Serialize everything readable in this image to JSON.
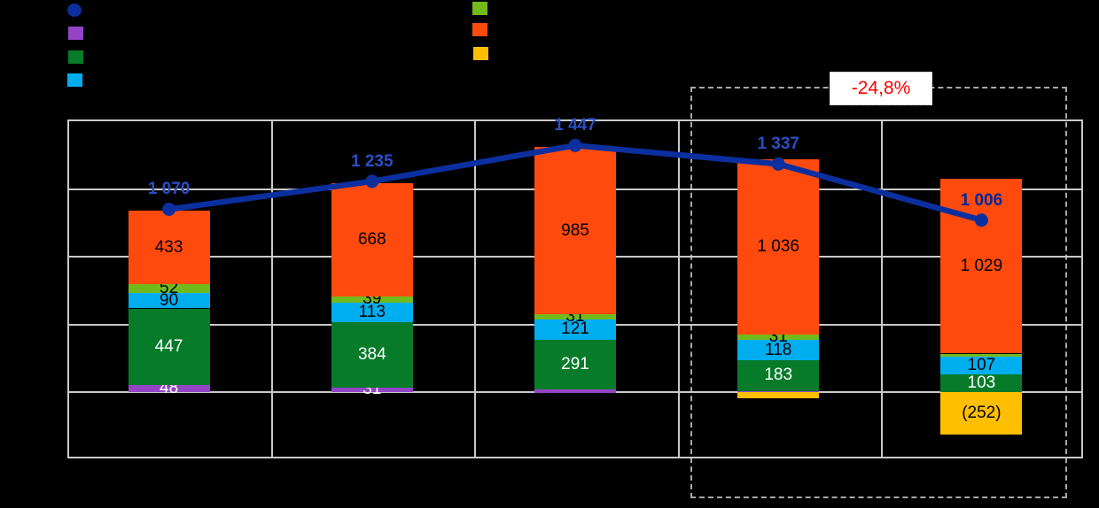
{
  "annotation": {
    "text": "-24,8%",
    "color": "#FF0000"
  },
  "legend": {
    "left_items": [
      {
        "name": "line-series",
        "shape": "circle",
        "color": "#0B2F9E",
        "label": ""
      },
      {
        "name": "purple-series",
        "shape": "square",
        "color": "#9345C6",
        "label": ""
      },
      {
        "name": "dark-green-series",
        "shape": "square",
        "color": "#077B2A",
        "label": ""
      },
      {
        "name": "cyan-series",
        "shape": "square",
        "color": "#00AEEF",
        "label": ""
      }
    ],
    "right_items": [
      {
        "name": "light-green-series",
        "shape": "square",
        "color": "#72BA1C",
        "label": ""
      },
      {
        "name": "orange-series",
        "shape": "square",
        "color": "#FF4A0E",
        "label": ""
      },
      {
        "name": "yellow-series",
        "shape": "square",
        "color": "#FFBF00",
        "label": ""
      }
    ]
  },
  "chart_data": {
    "type": "bar",
    "stacked": true,
    "title": "",
    "xlabel": "",
    "ylabel": "",
    "categories": [
      "",
      "",
      "",
      "",
      ""
    ],
    "ylim": [
      -400,
      1600
    ],
    "grid_step": 400,
    "grid": true,
    "series": [
      {
        "name": "purple",
        "color": "#9345C6",
        "label_color": "#FFFFFF",
        "values": [
          48,
          31,
          19,
          8,
          3
        ],
        "labels": [
          "48",
          "31",
          "",
          "",
          ""
        ]
      },
      {
        "name": "dark-green",
        "color": "#077B2A",
        "label_color": "#FFFFFF",
        "values": [
          447,
          384,
          291,
          183,
          103
        ],
        "labels": [
          "447",
          "384",
          "291",
          "183",
          "103"
        ]
      },
      {
        "name": "cyan",
        "color": "#00AEEF",
        "label_color": "#000000",
        "values": [
          90,
          113,
          121,
          118,
          107
        ],
        "labels": [
          "90",
          "113",
          "121",
          "118",
          "107"
        ]
      },
      {
        "name": "light-green",
        "color": "#72BA1C",
        "label_color": "#000000",
        "values": [
          52,
          39,
          31,
          31,
          16
        ],
        "labels": [
          "52",
          "39",
          "31",
          "31",
          ""
        ]
      },
      {
        "name": "orange",
        "color": "#FF4A0E",
        "label_color": "#000000",
        "values": [
          433,
          668,
          985,
          1036,
          1029
        ],
        "labels": [
          "433",
          "668",
          "985",
          "1 036",
          "1 029"
        ]
      },
      {
        "name": "yellow",
        "color": "#FFBF00",
        "label_color": "#000000",
        "values": [
          0,
          0,
          0,
          -39,
          -252
        ],
        "labels": [
          "",
          "",
          "",
          "",
          "(252)"
        ]
      }
    ],
    "overlay_line": {
      "name": "total-line",
      "color": "#0B2F9E",
      "values": [
        1070,
        1235,
        1447,
        1337,
        1006
      ],
      "labels": [
        "1 070",
        "1 235",
        "1 447",
        "1 337",
        "1 006"
      ],
      "label_color": "#2B4FC4",
      "last_label_color": "#00289B"
    },
    "highlight_box": {
      "annotation": "-24,8%",
      "columns": [
        3,
        4
      ]
    },
    "legend_position": "top"
  }
}
